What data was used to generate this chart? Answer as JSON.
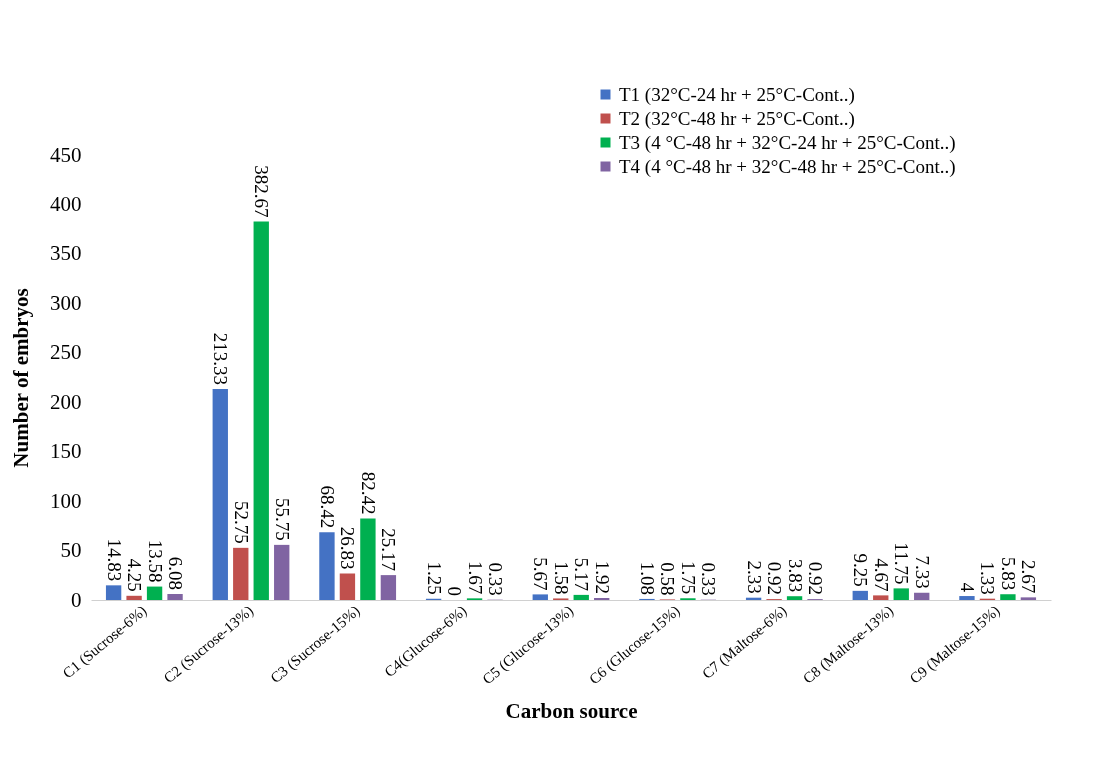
{
  "chart_data": {
    "type": "bar",
    "xlabel": "Carbon source",
    "ylabel": "Number of embryos",
    "categories": [
      "C1 (Sucrose-6%)",
      "C2 (Sucrose-13%)",
      "C3 (Sucrose-15%)",
      "C4(Glucose-6%)",
      "C5 (Glucose-13%)",
      "C6 (Glucose-15%)",
      "C7 (Maltose-6%)",
      "C8 (Maltose-13%)",
      "C9 (Maltose-15%)"
    ],
    "series": [
      {
        "name": "T1 (32°C-24 hr + 25°C-Cont..)",
        "color": "#4472c4",
        "values": [
          14.83,
          213.33,
          68.42,
          1.25,
          5.67,
          1.08,
          2.33,
          9.25,
          4
        ]
      },
      {
        "name": "T2 (32°C-48 hr + 25°C-Cont..)",
        "color": "#c0504d",
        "values": [
          4.25,
          52.75,
          26.83,
          0,
          1.58,
          0.58,
          0.92,
          4.67,
          1.33
        ]
      },
      {
        "name": "T3 (4 °C-48 hr + 32°C-24 hr + 25°C-Cont..)",
        "color": "#00b050",
        "values": [
          13.58,
          382.67,
          82.42,
          1.67,
          5.17,
          1.75,
          3.83,
          11.75,
          5.83
        ]
      },
      {
        "name": "T4 (4 °C-48 hr + 32°C-48 hr + 25°C-Cont..)",
        "color": "#8064a2",
        "values": [
          6.08,
          55.75,
          25.17,
          0.33,
          1.92,
          0.33,
          0.92,
          7.33,
          2.67
        ]
      }
    ],
    "ylim": [
      0,
      450
    ],
    "yticks": [
      0,
      50,
      100,
      150,
      200,
      250,
      300,
      350,
      400,
      450
    ],
    "legend": "top right",
    "data_labels": true
  }
}
